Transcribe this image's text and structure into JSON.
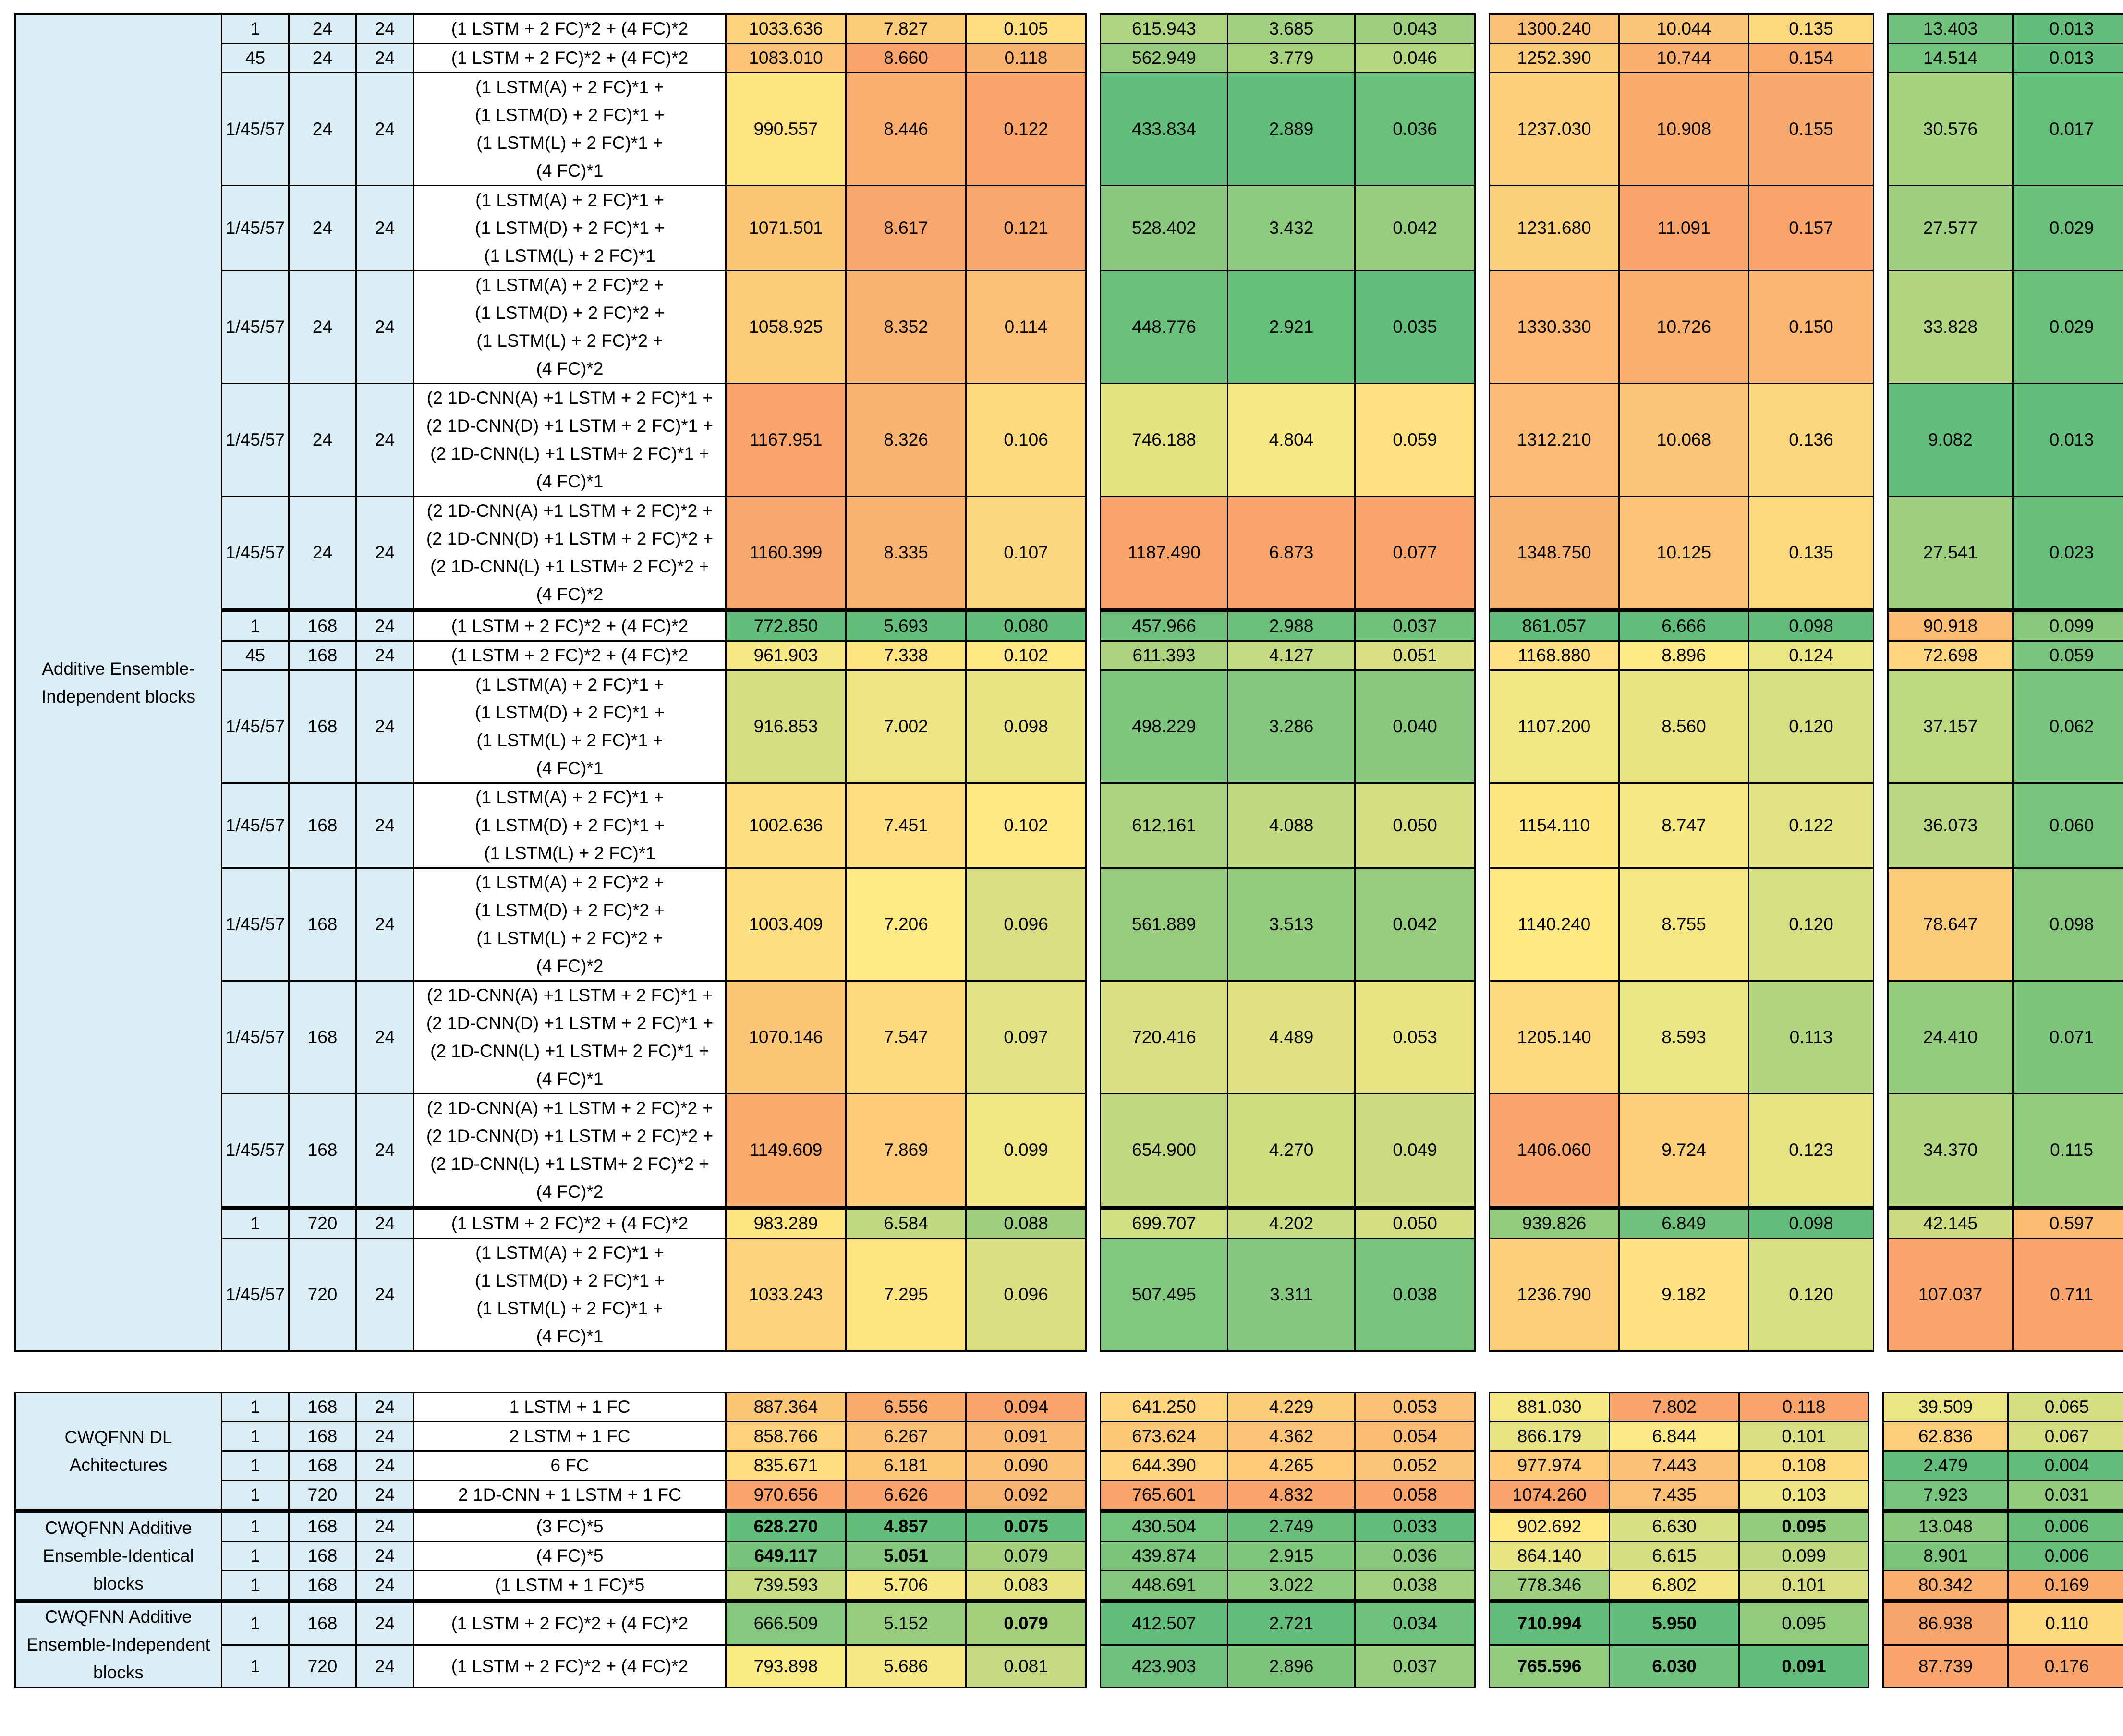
{
  "table1": {
    "group_label": "Additive Ensemble-Independent blocks",
    "rows": [
      {
        "station": "1",
        "lookback": "24",
        "horizon": "24",
        "architecture": [
          "(1 LSTM + 2 FC)*2 + (4 FC)*2"
        ],
        "m1": [
          "1033.636",
          "7.827",
          "0.105"
        ],
        "m2": [
          "615.943",
          "3.685",
          "0.043"
        ],
        "m3": [
          "1300.240",
          "10.044",
          "0.135"
        ],
        "m4": [
          "13.403",
          "0.013"
        ]
      },
      {
        "station": "45",
        "lookback": "24",
        "horizon": "24",
        "architecture": [
          "(1 LSTM + 2 FC)*2 + (4 FC)*2"
        ],
        "m1": [
          "1083.010",
          "8.660",
          "0.118"
        ],
        "m2": [
          "562.949",
          "3.779",
          "0.046"
        ],
        "m3": [
          "1252.390",
          "10.744",
          "0.154"
        ],
        "m4": [
          "14.514",
          "0.013"
        ]
      },
      {
        "station": "1/45/57",
        "lookback": "24",
        "horizon": "24",
        "architecture": [
          "(1 LSTM(A) + 2 FC)*1 +",
          "(1 LSTM(D) + 2 FC)*1 +",
          "(1 LSTM(L) + 2 FC)*1 +",
          "(4 FC)*1"
        ],
        "m1": [
          "990.557",
          "8.446",
          "0.122"
        ],
        "m2": [
          "433.834",
          "2.889",
          "0.036"
        ],
        "m3": [
          "1237.030",
          "10.908",
          "0.155"
        ],
        "m4": [
          "30.576",
          "0.017"
        ]
      },
      {
        "station": "1/45/57",
        "lookback": "24",
        "horizon": "24",
        "architecture": [
          "(1 LSTM(A) + 2 FC)*1 +",
          "(1 LSTM(D) + 2 FC)*1 +",
          "(1 LSTM(L) + 2 FC)*1"
        ],
        "m1": [
          "1071.501",
          "8.617",
          "0.121"
        ],
        "m2": [
          "528.402",
          "3.432",
          "0.042"
        ],
        "m3": [
          "1231.680",
          "11.091",
          "0.157"
        ],
        "m4": [
          "27.577",
          "0.029"
        ]
      },
      {
        "station": "1/45/57",
        "lookback": "24",
        "horizon": "24",
        "architecture": [
          "(1 LSTM(A) + 2 FC)*2 +",
          "(1 LSTM(D) + 2 FC)*2 +",
          "(1 LSTM(L) + 2 FC)*2 +",
          "(4 FC)*2"
        ],
        "m1": [
          "1058.925",
          "8.352",
          "0.114"
        ],
        "m2": [
          "448.776",
          "2.921",
          "0.035"
        ],
        "m3": [
          "1330.330",
          "10.726",
          "0.150"
        ],
        "m4": [
          "33.828",
          "0.029"
        ]
      },
      {
        "station": "1/45/57",
        "lookback": "24",
        "horizon": "24",
        "architecture": [
          "(2 1D-CNN(A) +1 LSTM + 2 FC)*1 +",
          "(2 1D-CNN(D) +1 LSTM + 2 FC)*1 +",
          "(2 1D-CNN(L) +1 LSTM+  2 FC)*1 +",
          "(4 FC)*1"
        ],
        "m1": [
          "1167.951",
          "8.326",
          "0.106"
        ],
        "m2": [
          "746.188",
          "4.804",
          "0.059"
        ],
        "m3": [
          "1312.210",
          "10.068",
          "0.136"
        ],
        "m4": [
          "9.082",
          "0.013"
        ]
      },
      {
        "station": "1/45/57",
        "lookback": "24",
        "horizon": "24",
        "architecture": [
          "(2 1D-CNN(A) +1 LSTM + 2 FC)*2 +",
          "(2 1D-CNN(D) +1 LSTM + 2 FC)*2 +",
          "(2 1D-CNN(L) +1 LSTM+  2 FC)*2 +",
          "(4 FC)*2"
        ],
        "m1": [
          "1160.399",
          "8.335",
          "0.107"
        ],
        "m2": [
          "1187.490",
          "6.873",
          "0.077"
        ],
        "m3": [
          "1348.750",
          "10.125",
          "0.135"
        ],
        "m4": [
          "27.541",
          "0.023"
        ]
      },
      {
        "station": "1",
        "lookback": "168",
        "horizon": "24",
        "architecture": [
          "(1 LSTM + 2 FC)*2 + (4 FC)*2"
        ],
        "m1": [
          "772.850",
          "5.693",
          "0.080"
        ],
        "m2": [
          "457.966",
          "2.988",
          "0.037"
        ],
        "m3": [
          "861.057",
          "6.666",
          "0.098"
        ],
        "m4": [
          "90.918",
          "0.099"
        ],
        "sep": true
      },
      {
        "station": "45",
        "lookback": "168",
        "horizon": "24",
        "architecture": [
          "(1 LSTM + 2 FC)*2 + (4 FC)*2"
        ],
        "m1": [
          "961.903",
          "7.338",
          "0.102"
        ],
        "m2": [
          "611.393",
          "4.127",
          "0.051"
        ],
        "m3": [
          "1168.880",
          "8.896",
          "0.124"
        ],
        "m4": [
          "72.698",
          "0.059"
        ]
      },
      {
        "station": "1/45/57",
        "lookback": "168",
        "horizon": "24",
        "architecture": [
          "(1 LSTM(A) + 2 FC)*1 +",
          "(1 LSTM(D) + 2 FC)*1 +",
          "(1 LSTM(L) + 2 FC)*1 +",
          "(4 FC)*1"
        ],
        "m1": [
          "916.853",
          "7.002",
          "0.098"
        ],
        "m2": [
          "498.229",
          "3.286",
          "0.040"
        ],
        "m3": [
          "1107.200",
          "8.560",
          "0.120"
        ],
        "m4": [
          "37.157",
          "0.062"
        ]
      },
      {
        "station": "1/45/57",
        "lookback": "168",
        "horizon": "24",
        "architecture": [
          "(1 LSTM(A) + 2 FC)*1 +",
          "(1 LSTM(D) + 2 FC)*1 +",
          "(1 LSTM(L) + 2 FC)*1"
        ],
        "m1": [
          "1002.636",
          "7.451",
          "0.102"
        ],
        "m2": [
          "612.161",
          "4.088",
          "0.050"
        ],
        "m3": [
          "1154.110",
          "8.747",
          "0.122"
        ],
        "m4": [
          "36.073",
          "0.060"
        ]
      },
      {
        "station": "1/45/57",
        "lookback": "168",
        "horizon": "24",
        "architecture": [
          "(1 LSTM(A) + 2 FC)*2 +",
          "(1 LSTM(D) + 2 FC)*2 +",
          "(1 LSTM(L) + 2 FC)*2 +",
          "(4 FC)*2"
        ],
        "m1": [
          "1003.409",
          "7.206",
          "0.096"
        ],
        "m2": [
          "561.889",
          "3.513",
          "0.042"
        ],
        "m3": [
          "1140.240",
          "8.755",
          "0.120"
        ],
        "m4": [
          "78.647",
          "0.098"
        ]
      },
      {
        "station": "1/45/57",
        "lookback": "168",
        "horizon": "24",
        "architecture": [
          "(2 1D-CNN(A) +1 LSTM + 2 FC)*1 +",
          "(2 1D-CNN(D) +1 LSTM + 2 FC)*1 +",
          "(2 1D-CNN(L) +1 LSTM+  2 FC)*1 +",
          "(4 FC)*1"
        ],
        "m1": [
          "1070.146",
          "7.547",
          "0.097"
        ],
        "m2": [
          "720.416",
          "4.489",
          "0.053"
        ],
        "m3": [
          "1205.140",
          "8.593",
          "0.113"
        ],
        "m4": [
          "24.410",
          "0.071"
        ]
      },
      {
        "station": "1/45/57",
        "lookback": "168",
        "horizon": "24",
        "architecture": [
          "(2 1D-CNN(A) +1 LSTM + 2 FC)*2 +",
          "(2 1D-CNN(D) +1 LSTM + 2 FC)*2 +",
          "(2 1D-CNN(L) +1 LSTM+  2 FC)*2 +",
          "(4 FC)*2"
        ],
        "m1": [
          "1149.609",
          "7.869",
          "0.099"
        ],
        "m2": [
          "654.900",
          "4.270",
          "0.049"
        ],
        "m3": [
          "1406.060",
          "9.724",
          "0.123"
        ],
        "m4": [
          "34.370",
          "0.115"
        ]
      },
      {
        "station": "1",
        "lookback": "720",
        "horizon": "24",
        "architecture": [
          "(1 LSTM + 2 FC)*2 + (4 FC)*2"
        ],
        "m1": [
          "983.289",
          "6.584",
          "0.088"
        ],
        "m2": [
          "699.707",
          "4.202",
          "0.050"
        ],
        "m3": [
          "939.826",
          "6.849",
          "0.098"
        ],
        "m4": [
          "42.145",
          "0.597"
        ],
        "sep": true
      },
      {
        "station": "1/45/57",
        "lookback": "720",
        "horizon": "24",
        "architecture": [
          "(1 LSTM(A) + 2 FC)*1 +",
          "(1 LSTM(D) + 2 FC)*1 +",
          "(1 LSTM(L) + 2 FC)*1 +",
          "(4 FC)*1"
        ],
        "m1": [
          "1033.243",
          "7.295",
          "0.096"
        ],
        "m2": [
          "507.495",
          "3.311",
          "0.038"
        ],
        "m3": [
          "1236.790",
          "9.182",
          "0.120"
        ],
        "m4": [
          "107.037",
          "0.711"
        ]
      }
    ]
  },
  "table2": {
    "groups": [
      {
        "label": "CWQFNN DL Achitectures",
        "rows": [
          {
            "station": "1",
            "lookback": "168",
            "horizon": "24",
            "architecture": [
              "1 LSTM + 1 FC"
            ],
            "m1": [
              "887.364",
              "6.556",
              "0.094"
            ],
            "m2": [
              "641.250",
              "4.229",
              "0.053"
            ],
            "m3": [
              "881.030",
              "7.802",
              "0.118"
            ],
            "m4": [
              "39.509",
              "0.065"
            ]
          },
          {
            "station": "1",
            "lookback": "168",
            "horizon": "24",
            "architecture": [
              "2 LSTM + 1 FC"
            ],
            "m1": [
              "858.766",
              "6.267",
              "0.091"
            ],
            "m2": [
              "673.624",
              "4.362",
              "0.054"
            ],
            "m3": [
              "866.179",
              "6.844",
              "0.101"
            ],
            "m4": [
              "62.836",
              "0.067"
            ]
          },
          {
            "station": "1",
            "lookback": "168",
            "horizon": "24",
            "architecture": [
              "6 FC"
            ],
            "m1": [
              "835.671",
              "6.181",
              "0.090"
            ],
            "m2": [
              "644.390",
              "4.265",
              "0.052"
            ],
            "m3": [
              "977.974",
              "7.443",
              "0.108"
            ],
            "m4": [
              "2.479",
              "0.004"
            ]
          },
          {
            "station": "1",
            "lookback": "720",
            "horizon": "24",
            "architecture": [
              "2 1D-CNN + 1 LSTM + 1 FC"
            ],
            "m1": [
              "970.656",
              "6.626",
              "0.092"
            ],
            "m2": [
              "765.601",
              "4.832",
              "0.058"
            ],
            "m3": [
              "1074.260",
              "7.435",
              "0.103"
            ],
            "m4": [
              "7.923",
              "0.031"
            ]
          }
        ]
      },
      {
        "label": "CWQFNN Additive Ensemble-Identical blocks",
        "rows": [
          {
            "station": "1",
            "lookback": "168",
            "horizon": "24",
            "architecture": [
              "(3 FC)*5"
            ],
            "m1": [
              "628.270",
              "4.857",
              "0.075"
            ],
            "m2": [
              "430.504",
              "2.749",
              "0.033"
            ],
            "m3": [
              "902.692",
              "6.630",
              "0.095"
            ],
            "m4": [
              "13.048",
              "0.006"
            ]
          },
          {
            "station": "1",
            "lookback": "168",
            "horizon": "24",
            "architecture": [
              "(4 FC)*5"
            ],
            "m1": [
              "649.117",
              "5.051",
              "0.079"
            ],
            "m2": [
              "439.874",
              "2.915",
              "0.036"
            ],
            "m3": [
              "864.140",
              "6.615",
              "0.099"
            ],
            "m4": [
              "8.901",
              "0.006"
            ]
          },
          {
            "station": "1",
            "lookback": "168",
            "horizon": "24",
            "architecture": [
              "(1 LSTM + 1 FC)*5"
            ],
            "m1": [
              "739.593",
              "5.706",
              "0.083"
            ],
            "m2": [
              "448.691",
              "3.022",
              "0.038"
            ],
            "m3": [
              "778.346",
              "6.802",
              "0.101"
            ],
            "m4": [
              "80.342",
              "0.169"
            ]
          }
        ]
      },
      {
        "label": "CWQFNN Additive Ensemble-Independent blocks",
        "rows": [
          {
            "station": "1",
            "lookback": "168",
            "horizon": "24",
            "architecture": [
              "(1 LSTM + 2 FC)*2 + (4 FC)*2"
            ],
            "m1": [
              "666.509",
              "5.152",
              "0.079"
            ],
            "m2": [
              "412.507",
              "2.721",
              "0.034"
            ],
            "m3": [
              "710.994",
              "5.950",
              "0.095"
            ],
            "m4": [
              "86.938",
              "0.110"
            ]
          },
          {
            "station": "1",
            "lookback": "720",
            "horizon": "24",
            "architecture": [
              "(1 LSTM + 2 FC)*2 + (4 FC)*2"
            ],
            "m1": [
              "793.898",
              "5.686",
              "0.081"
            ],
            "m2": [
              "423.903",
              "2.896",
              "0.037"
            ],
            "m3": [
              "765.596",
              "6.030",
              "0.091"
            ],
            "m4": [
              "87.739",
              "0.176"
            ]
          }
        ]
      }
    ]
  },
  "colors": {
    "grp_bg": "#dbeef6",
    "green": "#63be7b",
    "yellow": "#ffeb84",
    "orange": "#f8a46b",
    "red": "#f8696b"
  }
}
